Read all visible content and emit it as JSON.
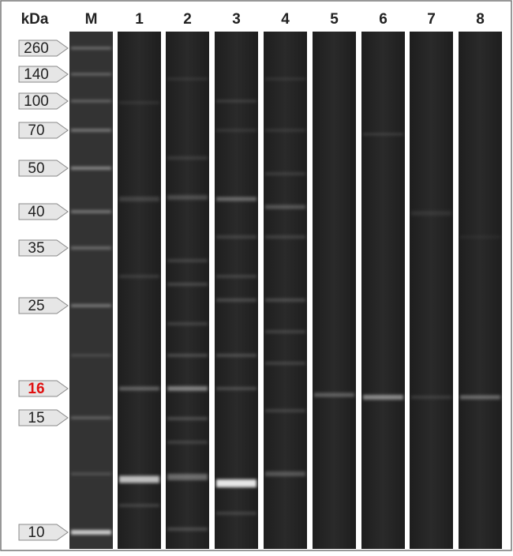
{
  "header": {
    "unit": "kDa"
  },
  "lanes": [
    "M",
    "1",
    "2",
    "3",
    "4",
    "5",
    "6",
    "7",
    "8"
  ],
  "markers": [
    {
      "label": "260"
    },
    {
      "label": "140"
    },
    {
      "label": "100"
    },
    {
      "label": "70"
    },
    {
      "label": "50"
    },
    {
      "label": "40"
    },
    {
      "label": "35"
    },
    {
      "label": "25"
    },
    {
      "label": "16",
      "highlight": true
    },
    {
      "label": "15"
    },
    {
      "label": "10"
    }
  ]
}
